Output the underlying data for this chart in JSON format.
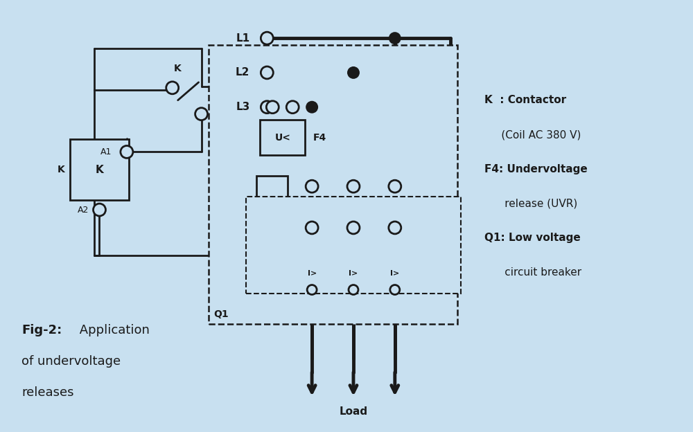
{
  "bg_color": "#c8e0f0",
  "line_color": "#1a1a1a",
  "lw": 2.0,
  "tlw": 3.5,
  "legend_lines": [
    [
      "K  : Contactor",
      true
    ],
    [
      "     (Coil AC 380 V)",
      false
    ],
    [
      "F4: Undervoltage",
      true
    ],
    [
      "      release (UVR)",
      false
    ],
    [
      "Q1: Low voltage",
      true
    ],
    [
      "      circuit breaker",
      false
    ]
  ]
}
